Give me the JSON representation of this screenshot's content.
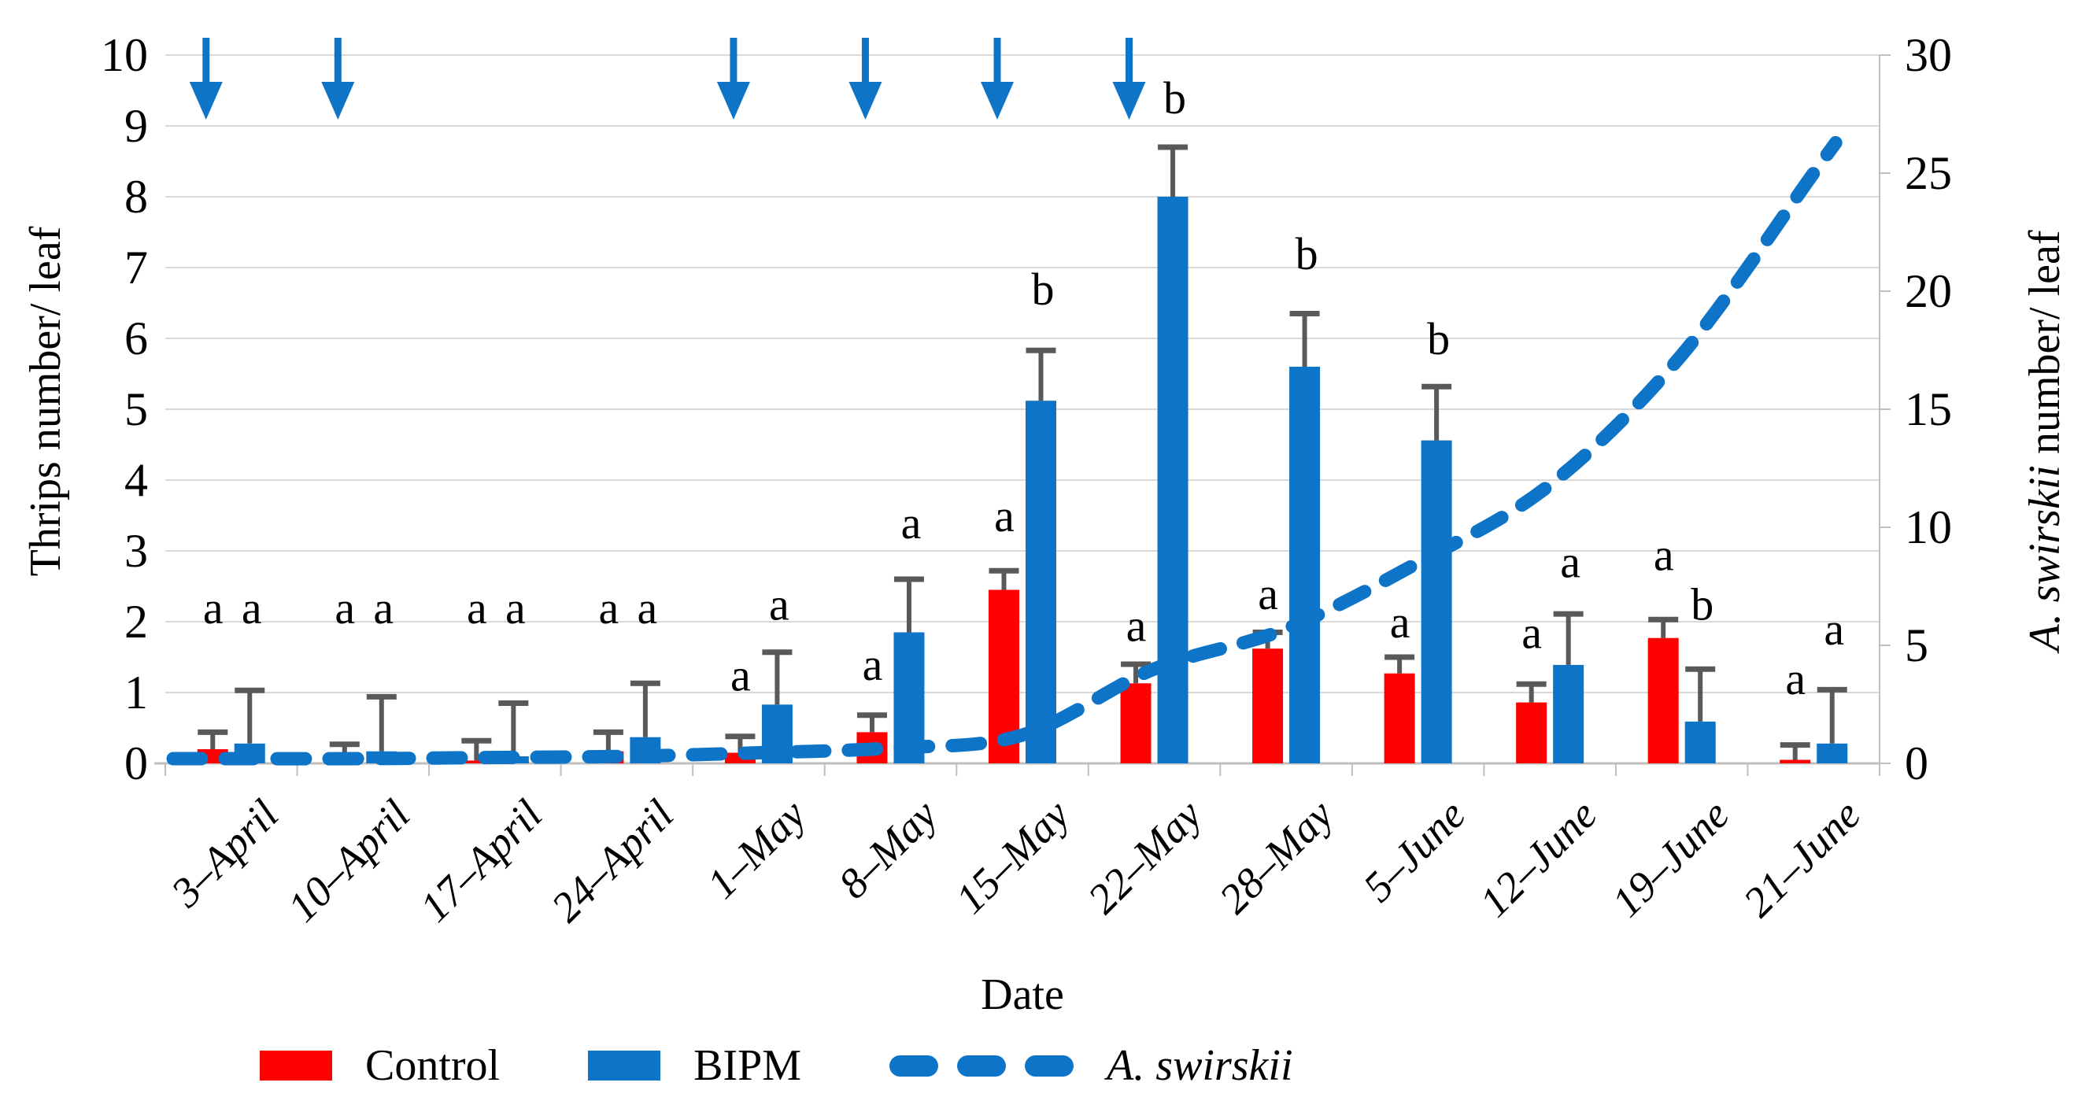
{
  "chart_data": {
    "type": "bar",
    "subtype": "grouped-bars-with-dashed-line-overlay",
    "title": "",
    "categories": [
      "3–April",
      "10–April",
      "17–April",
      "24–April",
      "1–May",
      "8–May",
      "15–May",
      "22–May",
      "28–May",
      "5–June",
      "12–June",
      "19–June",
      "21–June"
    ],
    "series": [
      {
        "name": "Control",
        "type": "bar",
        "axis": "left",
        "color": "#FF0000",
        "values": [
          0.2,
          0.02,
          0.04,
          0.17,
          0.15,
          0.44,
          2.45,
          1.13,
          1.62,
          1.27,
          0.86,
          1.77,
          0.05
        ],
        "error_plus": [
          0.24,
          0.25,
          0.28,
          0.27,
          0.23,
          0.24,
          0.27,
          0.27,
          0.23,
          0.23,
          0.26,
          0.26,
          0.21
        ],
        "sig_letters": [
          "a",
          "a",
          "a",
          "a",
          "a",
          "a",
          "a",
          "a",
          "a",
          "a",
          "a",
          "a",
          "a"
        ],
        "sig_letter_y": [
          2.2,
          2.2,
          2.2,
          2.2,
          1.25,
          1.4,
          3.5,
          1.95,
          2.4,
          2.0,
          1.85,
          2.95,
          1.2
        ]
      },
      {
        "name": "BIPM",
        "type": "bar",
        "axis": "left",
        "color": "#0E74C8",
        "values": [
          0.28,
          0.17,
          0.1,
          0.37,
          0.83,
          1.85,
          5.12,
          8.0,
          5.6,
          4.56,
          1.39,
          0.59,
          0.28
        ],
        "error_plus": [
          0.75,
          0.77,
          0.75,
          0.76,
          0.74,
          0.75,
          0.71,
          0.7,
          0.75,
          0.76,
          0.72,
          0.74,
          0.76
        ],
        "sig_letters": [
          "a",
          "a",
          "a",
          "a",
          "a",
          "a",
          "b",
          "b",
          "b",
          "b",
          "a",
          "b",
          "a"
        ],
        "sig_letter_y": [
          2.2,
          2.2,
          2.2,
          2.2,
          2.25,
          3.4,
          6.7,
          9.4,
          7.2,
          6.0,
          2.85,
          2.25,
          1.9
        ]
      },
      {
        "name": "A. swirskii",
        "type": "dashed-line",
        "axis": "right",
        "color": "#0E74C8",
        "values": [
          0.2,
          0.2,
          0.25,
          0.3,
          0.45,
          0.65,
          1.2,
          4.0,
          5.7,
          8.5,
          11.8,
          17.3,
          25.0
        ]
      }
    ],
    "left_axis": {
      "title": "Thrips number/ leaf",
      "min": 0,
      "max": 10,
      "step": 1
    },
    "right_axis": {
      "title_italic": "A. swirskii",
      "title_rest": " number/ leaf",
      "min": 0,
      "max": 30,
      "step": 5
    },
    "x_axis": {
      "title": "Date"
    },
    "release_arrows": {
      "indices": [
        0,
        1,
        4,
        5,
        6,
        7
      ],
      "color": "#0E74C8"
    },
    "legend": [
      {
        "label": "Control",
        "swatch": "bar",
        "color": "#FF0000",
        "italic": false
      },
      {
        "label": "BIPM",
        "swatch": "bar",
        "color": "#0E74C8",
        "italic": false
      },
      {
        "label": "A. swirskii",
        "swatch": "dash",
        "color": "#0E74C8",
        "italic": true
      }
    ],
    "grid": true,
    "legend_position": "bottom",
    "colors": {
      "gridline": "#D9D9D9",
      "axis_line": "#BFBFBF",
      "error_bar": "#595959",
      "text": "#000000"
    }
  }
}
